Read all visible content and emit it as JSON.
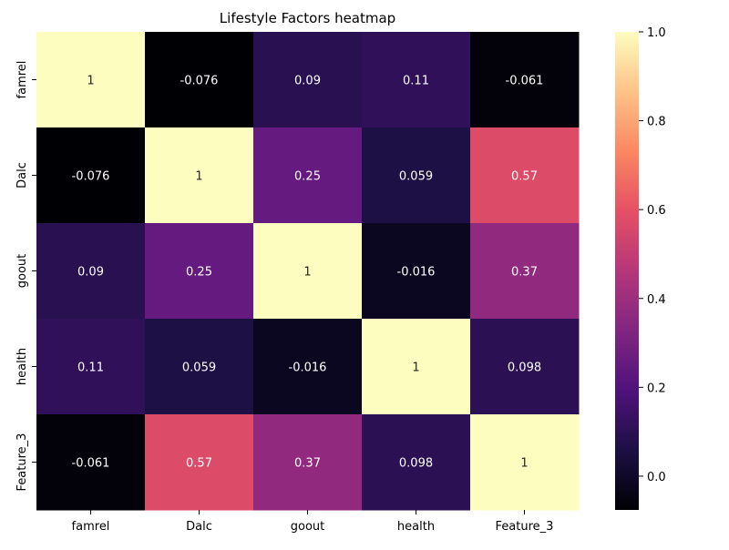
{
  "chart_data": {
    "type": "heatmap",
    "title": "Lifestyle Factors heatmap",
    "xlabel": "",
    "ylabel": "",
    "x_categories": [
      "famrel",
      "Dalc",
      "goout",
      "health",
      "Feature_3"
    ],
    "y_categories": [
      "famrel",
      "Dalc",
      "goout",
      "health",
      "Feature_3"
    ],
    "values": [
      [
        1,
        -0.076,
        0.09,
        0.11,
        -0.061
      ],
      [
        -0.076,
        1,
        0.25,
        0.059,
        0.57
      ],
      [
        0.09,
        0.25,
        1,
        -0.016,
        0.37
      ],
      [
        0.11,
        0.059,
        -0.016,
        1,
        0.098
      ],
      [
        -0.061,
        0.57,
        0.37,
        0.098,
        1
      ]
    ],
    "annotations": [
      [
        "1",
        "-0.076",
        "0.09",
        "0.11",
        "-0.061"
      ],
      [
        "-0.076",
        "1",
        "0.25",
        "0.059",
        "0.57"
      ],
      [
        "0.09",
        "0.25",
        "1",
        "-0.016",
        "0.37"
      ],
      [
        "0.11",
        "0.059",
        "-0.016",
        "1",
        "0.098"
      ],
      [
        "-0.061",
        "0.57",
        "0.37",
        "0.098",
        "1"
      ]
    ],
    "colorbar": {
      "colormap": "magma",
      "vmin": -0.076,
      "vmax": 1,
      "ticks": [
        0.0,
        0.2,
        0.4,
        0.6,
        0.8,
        1.0
      ],
      "tick_labels": [
        "0.0",
        "0.2",
        "0.4",
        "0.6",
        "0.8",
        "1.0"
      ]
    },
    "grid": false,
    "legend": "colorbar-right"
  }
}
